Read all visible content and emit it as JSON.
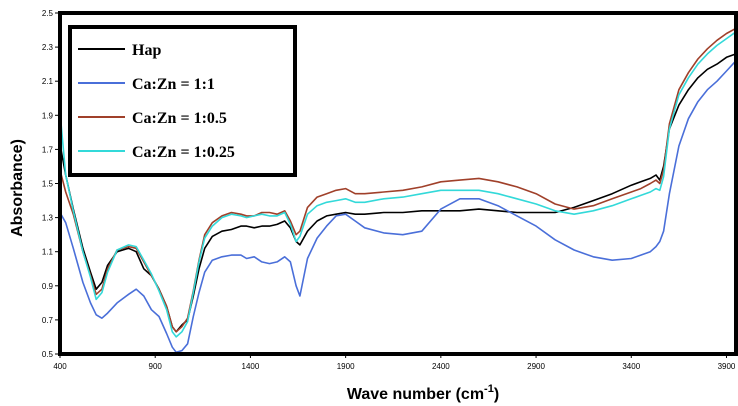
{
  "chart_data": {
    "type": "line",
    "title": "",
    "xlabel": "Wave number (cm",
    "xlabel_sup": "-1",
    "xlabel_close": ")",
    "ylabel": "Absorbance)",
    "xlim": [
      400,
      3950
    ],
    "ylim": [
      0.5,
      2.5
    ],
    "xticks": [
      "400",
      "900",
      "1400",
      "1900",
      "2400",
      "2900",
      "3400",
      "3900"
    ],
    "yticks": [
      "0.5",
      "0.7",
      "0.9",
      "1.1",
      "1.3",
      "1.5",
      "1.7",
      "1.9",
      "2.1",
      "2.3",
      "2.5"
    ],
    "grid": false,
    "legend_position": "top-left",
    "series": [
      {
        "name": "Hap",
        "color": "#000000",
        "x": [
          400,
          430,
          470,
          520,
          560,
          590,
          620,
          650,
          700,
          760,
          800,
          840,
          880,
          920,
          960,
          990,
          1010,
          1040,
          1070,
          1100,
          1130,
          1160,
          1200,
          1250,
          1300,
          1350,
          1380,
          1420,
          1460,
          1500,
          1540,
          1580,
          1610,
          1640,
          1660,
          1700,
          1750,
          1800,
          1850,
          1900,
          1950,
          2000,
          2100,
          2200,
          2300,
          2400,
          2500,
          2600,
          2700,
          2800,
          2900,
          3000,
          3100,
          3200,
          3300,
          3400,
          3450,
          3500,
          3530,
          3550,
          3570,
          3600,
          3650,
          3700,
          3750,
          3800,
          3850,
          3900,
          3950
        ],
        "y": [
          1.73,
          1.55,
          1.35,
          1.12,
          0.98,
          0.88,
          0.92,
          1.02,
          1.1,
          1.12,
          1.1,
          1.0,
          0.96,
          0.88,
          0.78,
          0.66,
          0.63,
          0.67,
          0.7,
          0.84,
          1.0,
          1.12,
          1.19,
          1.22,
          1.23,
          1.25,
          1.25,
          1.24,
          1.25,
          1.25,
          1.26,
          1.28,
          1.24,
          1.16,
          1.14,
          1.22,
          1.28,
          1.31,
          1.32,
          1.33,
          1.32,
          1.32,
          1.33,
          1.33,
          1.34,
          1.34,
          1.34,
          1.35,
          1.34,
          1.33,
          1.33,
          1.33,
          1.36,
          1.4,
          1.44,
          1.49,
          1.51,
          1.53,
          1.55,
          1.52,
          1.6,
          1.82,
          1.96,
          2.05,
          2.12,
          2.17,
          2.2,
          2.24,
          2.26
        ]
      },
      {
        "name": "Ca:Zn = 1:1",
        "color": "#4a6fd9",
        "x": [
          400,
          430,
          470,
          520,
          560,
          590,
          620,
          650,
          700,
          760,
          800,
          840,
          880,
          920,
          960,
          990,
          1010,
          1040,
          1070,
          1100,
          1130,
          1160,
          1200,
          1250,
          1300,
          1350,
          1380,
          1420,
          1460,
          1500,
          1540,
          1580,
          1610,
          1640,
          1660,
          1700,
          1750,
          1800,
          1850,
          1900,
          1950,
          2000,
          2100,
          2200,
          2300,
          2400,
          2500,
          2600,
          2700,
          2800,
          2900,
          3000,
          3100,
          3200,
          3300,
          3400,
          3450,
          3500,
          3530,
          3550,
          3570,
          3600,
          3650,
          3700,
          3750,
          3800,
          3850,
          3900,
          3950
        ],
        "y": [
          1.33,
          1.27,
          1.12,
          0.92,
          0.8,
          0.73,
          0.71,
          0.74,
          0.8,
          0.85,
          0.88,
          0.84,
          0.76,
          0.72,
          0.62,
          0.54,
          0.51,
          0.52,
          0.56,
          0.72,
          0.86,
          0.98,
          1.05,
          1.07,
          1.08,
          1.08,
          1.06,
          1.07,
          1.04,
          1.03,
          1.04,
          1.07,
          1.04,
          0.9,
          0.84,
          1.06,
          1.18,
          1.25,
          1.31,
          1.32,
          1.28,
          1.24,
          1.21,
          1.2,
          1.22,
          1.35,
          1.41,
          1.41,
          1.37,
          1.31,
          1.25,
          1.17,
          1.11,
          1.07,
          1.05,
          1.06,
          1.08,
          1.1,
          1.13,
          1.16,
          1.22,
          1.44,
          1.72,
          1.88,
          1.98,
          2.05,
          2.1,
          2.16,
          2.22
        ]
      },
      {
        "name": "Ca:Zn = 1:0.5",
        "color": "#a0402a",
        "x": [
          400,
          430,
          470,
          520,
          560,
          590,
          620,
          650,
          700,
          760,
          800,
          840,
          880,
          920,
          960,
          990,
          1010,
          1040,
          1070,
          1100,
          1130,
          1160,
          1200,
          1250,
          1300,
          1350,
          1380,
          1420,
          1460,
          1500,
          1540,
          1580,
          1610,
          1640,
          1660,
          1700,
          1750,
          1800,
          1850,
          1900,
          1950,
          2000,
          2100,
          2200,
          2300,
          2400,
          2500,
          2600,
          2700,
          2800,
          2900,
          3000,
          3100,
          3200,
          3300,
          3400,
          3450,
          3500,
          3530,
          3550,
          3570,
          3600,
          3650,
          3700,
          3750,
          3800,
          3850,
          3900,
          3950
        ],
        "y": [
          1.58,
          1.45,
          1.32,
          1.1,
          0.96,
          0.85,
          0.88,
          1.0,
          1.11,
          1.13,
          1.12,
          1.04,
          0.96,
          0.88,
          0.78,
          0.66,
          0.63,
          0.66,
          0.71,
          0.87,
          1.05,
          1.2,
          1.27,
          1.31,
          1.33,
          1.32,
          1.31,
          1.31,
          1.33,
          1.33,
          1.32,
          1.34,
          1.28,
          1.2,
          1.22,
          1.36,
          1.42,
          1.44,
          1.46,
          1.47,
          1.44,
          1.44,
          1.45,
          1.46,
          1.48,
          1.51,
          1.52,
          1.53,
          1.51,
          1.48,
          1.44,
          1.38,
          1.35,
          1.37,
          1.41,
          1.45,
          1.47,
          1.5,
          1.52,
          1.5,
          1.58,
          1.85,
          2.05,
          2.15,
          2.23,
          2.29,
          2.34,
          2.38,
          2.41
        ]
      },
      {
        "name": "Ca:Zn = 1:0.25",
        "color": "#33d9d9",
        "x": [
          400,
          430,
          470,
          520,
          560,
          590,
          620,
          650,
          700,
          760,
          800,
          840,
          880,
          920,
          960,
          990,
          1010,
          1040,
          1070,
          1100,
          1130,
          1160,
          1200,
          1250,
          1300,
          1350,
          1380,
          1420,
          1460,
          1500,
          1540,
          1580,
          1610,
          1640,
          1660,
          1700,
          1750,
          1800,
          1850,
          1900,
          1950,
          2000,
          2100,
          2200,
          2300,
          2400,
          2500,
          2600,
          2700,
          2800,
          2900,
          3000,
          3100,
          3200,
          3300,
          3400,
          3450,
          3500,
          3530,
          3550,
          3570,
          3600,
          3650,
          3700,
          3750,
          3800,
          3850,
          3900,
          3950
        ],
        "y": [
          1.92,
          1.55,
          1.34,
          1.1,
          0.95,
          0.82,
          0.86,
          0.98,
          1.11,
          1.14,
          1.13,
          1.05,
          0.97,
          0.87,
          0.76,
          0.63,
          0.6,
          0.63,
          0.69,
          0.86,
          1.04,
          1.18,
          1.25,
          1.3,
          1.32,
          1.31,
          1.3,
          1.31,
          1.32,
          1.31,
          1.31,
          1.33,
          1.26,
          1.16,
          1.19,
          1.32,
          1.37,
          1.39,
          1.4,
          1.41,
          1.39,
          1.39,
          1.41,
          1.42,
          1.44,
          1.46,
          1.46,
          1.46,
          1.44,
          1.41,
          1.38,
          1.34,
          1.32,
          1.34,
          1.37,
          1.41,
          1.43,
          1.45,
          1.47,
          1.46,
          1.54,
          1.82,
          2.02,
          2.12,
          2.2,
          2.26,
          2.31,
          2.35,
          2.39
        ]
      }
    ]
  }
}
